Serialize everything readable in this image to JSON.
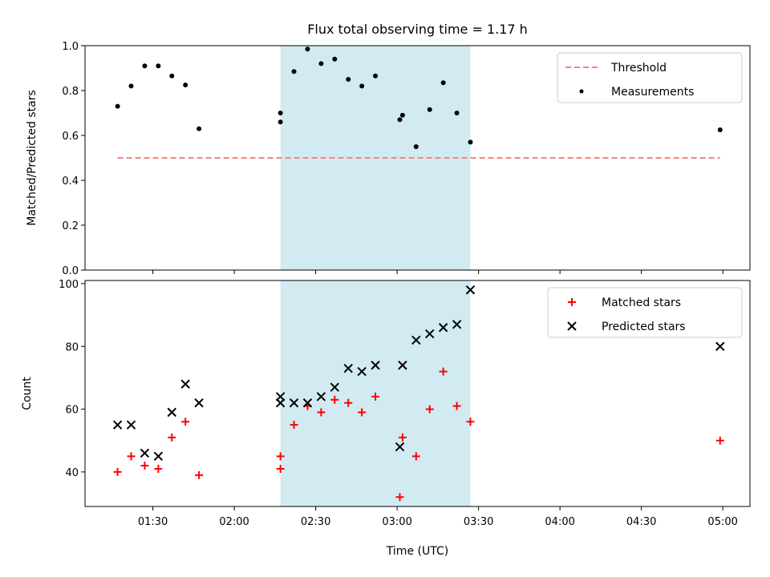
{
  "chart_data": {
    "title": "Flux total observing time = 1.17 h",
    "xlabel": "Time (UTC)",
    "x_ticks": [
      "01:30",
      "02:00",
      "02:30",
      "03:00",
      "03:30",
      "04:00",
      "04:30",
      "05:00"
    ],
    "shaded_interval": {
      "start": "02:17",
      "end": "03:27",
      "color": "#add8e6"
    },
    "panels": [
      {
        "type": "scatter",
        "ylabel": "Matched/Predicted stars",
        "ylim": [
          0,
          1.0
        ],
        "y_ticks": [
          "0.0",
          "0.2",
          "0.4",
          "0.6",
          "0.8",
          "1.0"
        ],
        "legend": {
          "position": "top-right"
        },
        "series": [
          {
            "name": "Threshold",
            "kind": "dashed-line",
            "color": "#ff7f7f",
            "x": [
              "01:17",
              "04:59"
            ],
            "y": [
              0.5,
              0.5
            ]
          },
          {
            "name": "Measurements",
            "kind": "dot",
            "color": "#000000",
            "x": [
              "01:17",
              "01:22",
              "01:27",
              "01:32",
              "01:37",
              "01:42",
              "01:47",
              "02:17",
              "02:17",
              "02:22",
              "02:27",
              "02:32",
              "02:37",
              "02:42",
              "02:47",
              "02:52",
              "03:01",
              "03:02",
              "03:07",
              "03:12",
              "03:17",
              "03:22",
              "03:27",
              "04:59"
            ],
            "y": [
              0.73,
              0.82,
              0.91,
              0.91,
              0.865,
              0.825,
              0.63,
              0.7,
              0.66,
              0.885,
              0.985,
              0.92,
              0.94,
              0.85,
              0.82,
              0.865,
              0.67,
              0.69,
              0.55,
              0.715,
              0.835,
              0.7,
              0.57,
              0.625
            ]
          }
        ]
      },
      {
        "type": "scatter",
        "ylabel": "Count",
        "ylim": [
          29,
          101
        ],
        "y_ticks": [
          "40",
          "60",
          "80",
          "100"
        ],
        "legend": {
          "position": "top-right"
        },
        "series": [
          {
            "name": "Matched stars",
            "kind": "plus",
            "color": "#ff0000",
            "x": [
              "01:17",
              "01:22",
              "01:27",
              "01:32",
              "01:37",
              "01:42",
              "01:47",
              "02:17",
              "02:17",
              "02:22",
              "02:27",
              "02:32",
              "02:37",
              "02:42",
              "02:47",
              "02:52",
              "03:01",
              "03:02",
              "03:07",
              "03:12",
              "03:17",
              "03:22",
              "03:27",
              "04:59"
            ],
            "y": [
              40,
              45,
              42,
              41,
              51,
              56,
              39,
              45,
              41,
              55,
              61,
              59,
              63,
              62,
              59,
              64,
              32,
              51,
              45,
              60,
              72,
              61,
              56,
              50
            ]
          },
          {
            "name": "Predicted stars",
            "kind": "x",
            "color": "#000000",
            "x": [
              "01:17",
              "01:22",
              "01:27",
              "01:32",
              "01:37",
              "01:42",
              "01:47",
              "02:17",
              "02:17",
              "02:22",
              "02:27",
              "02:32",
              "02:37",
              "02:42",
              "02:47",
              "02:52",
              "03:01",
              "03:02",
              "03:07",
              "03:12",
              "03:17",
              "03:22",
              "03:27",
              "04:59"
            ],
            "y": [
              55,
              55,
              46,
              45,
              59,
              68,
              62,
              64,
              62,
              62,
              62,
              64,
              67,
              73,
              72,
              74,
              48,
              74,
              82,
              84,
              86,
              87,
              98,
              80
            ]
          }
        ]
      }
    ]
  }
}
